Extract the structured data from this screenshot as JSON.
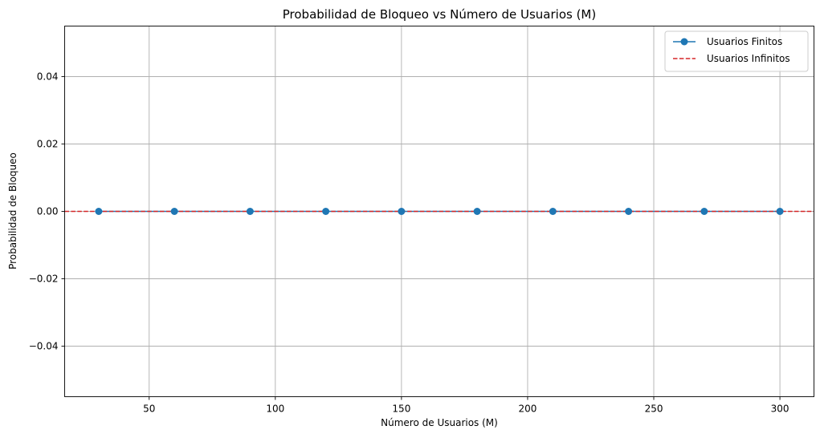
{
  "chart_data": {
    "type": "line",
    "title": "Probabilidad de Bloqueo vs Número de Usuarios (M)",
    "xlabel": "Número de Usuarios (M)",
    "ylabel": "Probabilidad de Bloqueo",
    "xlim": [
      16.5,
      313.5
    ],
    "ylim": [
      -0.055,
      0.055
    ],
    "xticks": [
      50,
      100,
      150,
      200,
      250,
      300
    ],
    "xtick_labels": [
      "50",
      "100",
      "150",
      "200",
      "250",
      "300"
    ],
    "yticks": [
      -0.04,
      -0.02,
      0.0,
      0.02,
      0.04
    ],
    "ytick_labels": [
      "−0.04",
      "−0.02",
      "0.00",
      "0.02",
      "0.04"
    ],
    "grid": true,
    "legend_position": "top-right",
    "series": [
      {
        "name": "Usuarios Finitos",
        "style": "solid-line-circle-markers",
        "color": "#1f77b4",
        "x": [
          30,
          60,
          90,
          120,
          150,
          180,
          210,
          240,
          270,
          300
        ],
        "y": [
          0,
          0,
          0,
          0,
          0,
          0,
          0,
          0,
          0,
          0
        ]
      },
      {
        "name": "Usuarios Infinitos",
        "style": "dashed-horizontal-line",
        "color": "#d62728",
        "y": 0
      }
    ]
  }
}
